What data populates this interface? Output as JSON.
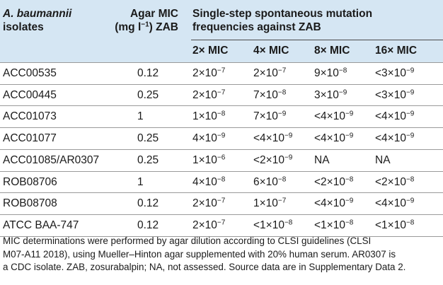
{
  "header": {
    "organism": "A. baumannii",
    "isolates_label": "isolates",
    "mic_line1": "Agar MIC",
    "mic_line2_pre": "(mg l",
    "mic_line2_sup": "−1",
    "mic_line2_post": ") ZAB",
    "freq_line1": "Single-step spontaneous mutation",
    "freq_line2": "frequencies against ZAB",
    "subcols": [
      "2× MIC",
      "4× MIC",
      "8× MIC",
      "16× MIC"
    ]
  },
  "rows": [
    {
      "isolate": "ACC00535",
      "mic": "0.12",
      "f": [
        [
          "2×10",
          "−7"
        ],
        [
          "2×10",
          "−7"
        ],
        [
          "9×10",
          "−8"
        ],
        [
          "<3×10",
          "−9"
        ]
      ]
    },
    {
      "isolate": "ACC00445",
      "mic": "0.25",
      "f": [
        [
          "2×10",
          "−7"
        ],
        [
          "7×10",
          "−8"
        ],
        [
          "3×10",
          "−9"
        ],
        [
          "<3×10",
          "−9"
        ]
      ]
    },
    {
      "isolate": "ACC01073",
      "mic": "1",
      "f": [
        [
          "1×10",
          "−8"
        ],
        [
          "7×10",
          "−9"
        ],
        [
          "<4×10",
          "−9"
        ],
        [
          "<4×10",
          "−9"
        ]
      ]
    },
    {
      "isolate": "ACC01077",
      "mic": "0.25",
      "f": [
        [
          "4×10",
          "−9"
        ],
        [
          "<4×10",
          "−9"
        ],
        [
          "<4×10",
          "−9"
        ],
        [
          "<4×10",
          "−9"
        ]
      ]
    },
    {
      "isolate": "ACC01085/AR0307",
      "mic": "0.25",
      "f": [
        [
          "1×10",
          "−6"
        ],
        [
          "<2×10",
          "−9"
        ],
        [
          "NA",
          ""
        ],
        [
          "NA",
          ""
        ]
      ]
    },
    {
      "isolate": "ROB08706",
      "mic": "1",
      "f": [
        [
          "4×10",
          "−8"
        ],
        [
          "6×10",
          "−8"
        ],
        [
          "<2×10",
          "−8"
        ],
        [
          "<2×10",
          "−8"
        ]
      ]
    },
    {
      "isolate": "ROB08708",
      "mic": "0.12",
      "f": [
        [
          "2×10",
          "−7"
        ],
        [
          "1×10",
          "−7"
        ],
        [
          "<4×10",
          "−9"
        ],
        [
          "<4×10",
          "−9"
        ]
      ]
    },
    {
      "isolate": "ATCC BAA-747",
      "mic": "0.12",
      "f": [
        [
          "2×10",
          "−7"
        ],
        [
          "<1×10",
          "−8"
        ],
        [
          "<1×10",
          "−8"
        ],
        [
          "<1×10",
          "−8"
        ]
      ]
    }
  ],
  "footnote": [
    "MIC determinations were performed by agar dilution according to CLSI guidelines (CLSI",
    "M07-A11 2018), using Mueller–Hinton agar supplemented with 20% human serum. AR0307 is",
    "a CDC isolate. ZAB, zosurabalpin; NA, not assessed. Source data are in Supplementary Data 2."
  ]
}
